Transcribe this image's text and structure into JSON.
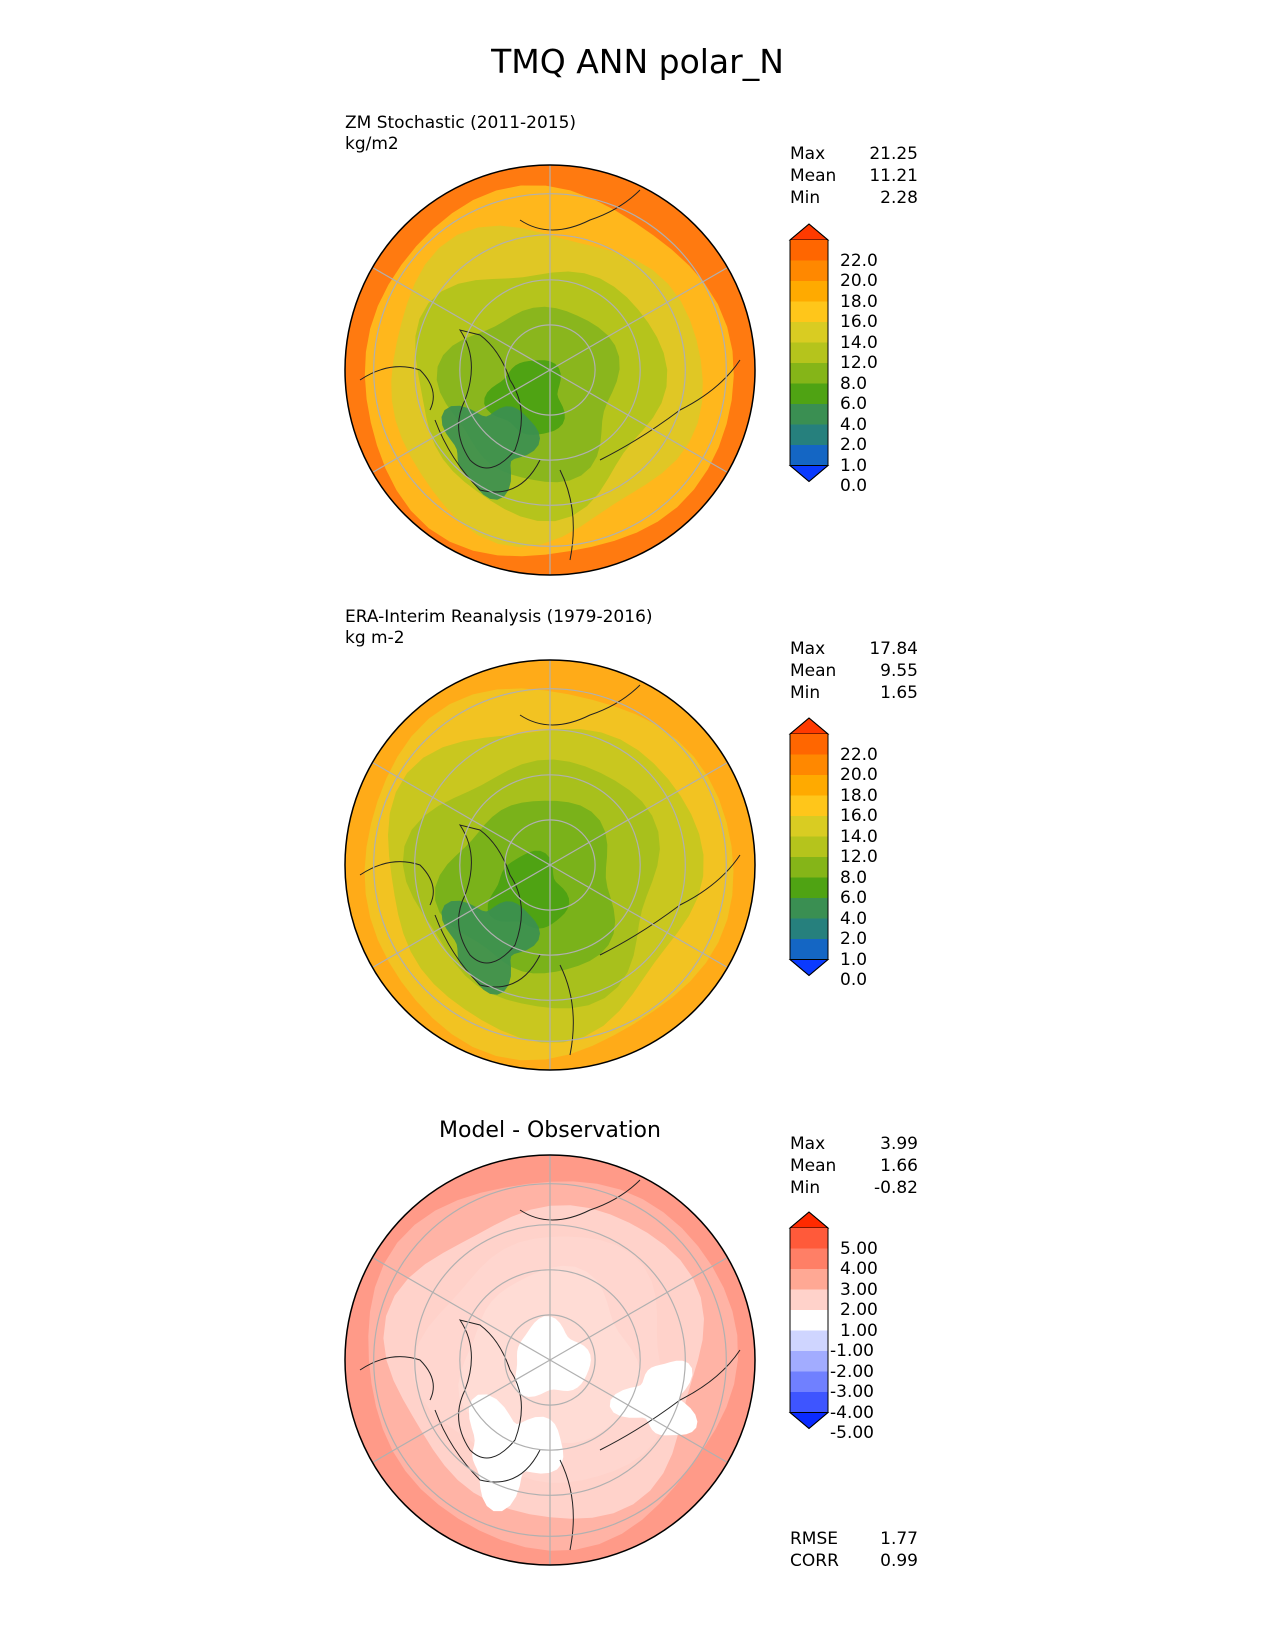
{
  "figure": {
    "title": "TMQ ANN polar_N"
  },
  "panels": [
    {
      "id": "test",
      "title_line1": "ZM Stochastic (2011-2015)",
      "title_line2": "kg/m2",
      "stats": {
        "max_label": "Max",
        "max": "21.25",
        "mean_label": "Mean",
        "mean": "11.21",
        "min_label": "Min",
        "min": "2.28"
      },
      "colorbar": {
        "ticks": [
          "22.0",
          "20.0",
          "18.0",
          "16.0",
          "14.0",
          "12.0",
          "8.0",
          "6.0",
          "4.0",
          "2.0",
          "1.0",
          "0.0"
        ],
        "colors": [
          "#ff3a00",
          "#ff6600",
          "#ff8800",
          "#ffaa00",
          "#ffc61a",
          "#d9cc22",
          "#b5c41c",
          "#85b518",
          "#4fa313",
          "#3a8f52",
          "#26807d",
          "#1466c4",
          "#0a3aff"
        ]
      },
      "fields": {
        "outer": "#ff7a10",
        "ring1": "#ffb71c",
        "ring2": "#e0c725",
        "ring3": "#b5c41c",
        "inner": "#8ab61d",
        "core": "#4fa313"
      }
    },
    {
      "id": "reference",
      "title_line1": "ERA-Interim Reanalysis (1979-2016)",
      "title_line2": "kg m-2",
      "stats": {
        "max_label": "Max",
        "max": "17.84",
        "mean_label": "Mean",
        "mean": "9.55",
        "min_label": "Min",
        "min": "1.65"
      },
      "colorbar": {
        "ticks": [
          "22.0",
          "20.0",
          "18.0",
          "16.0",
          "14.0",
          "12.0",
          "8.0",
          "6.0",
          "4.0",
          "2.0",
          "1.0",
          "0.0"
        ],
        "colors": [
          "#ff3a00",
          "#ff6600",
          "#ff8800",
          "#ffaa00",
          "#ffc61a",
          "#d9cc22",
          "#b5c41c",
          "#85b518",
          "#4fa313",
          "#3a8f52",
          "#26807d",
          "#1466c4",
          "#0a3aff"
        ]
      },
      "fields": {
        "outer": "#ffab18",
        "ring1": "#f2c322",
        "ring2": "#c9c71f",
        "ring3": "#a8c01c",
        "inner": "#7ab21a",
        "core": "#4fa313"
      }
    },
    {
      "id": "diff",
      "title_line1": "Model - Observation",
      "stats": {
        "max_label": "Max",
        "max": "3.99",
        "mean_label": "Mean",
        "mean": "1.66",
        "min_label": "Min",
        "min": "-0.82"
      },
      "extra_stats": {
        "rmse_label": "RMSE",
        "rmse": "1.77",
        "corr_label": "CORR",
        "corr": "0.99"
      },
      "colorbar": {
        "ticks": [
          "5.00",
          "4.00",
          "3.00",
          "2.00",
          "1.00",
          "-1.00",
          "-2.00",
          "-3.00",
          "-4.00",
          "-5.00"
        ],
        "colors": [
          "#ff2a00",
          "#ff5a3a",
          "#ff7f66",
          "#ffa894",
          "#ffd2ca",
          "#ffffff",
          "#cfd5ff",
          "#a2acff",
          "#7080ff",
          "#3e55ff",
          "#0a2aff"
        ]
      },
      "fields": {
        "outer": "#ff9a88",
        "ring1": "#ffb3a5",
        "ring2": "#ffd2ca",
        "ring3": "#ffd6cf",
        "inner": "#ffdcd5",
        "core": "#ffffff"
      }
    }
  ]
}
